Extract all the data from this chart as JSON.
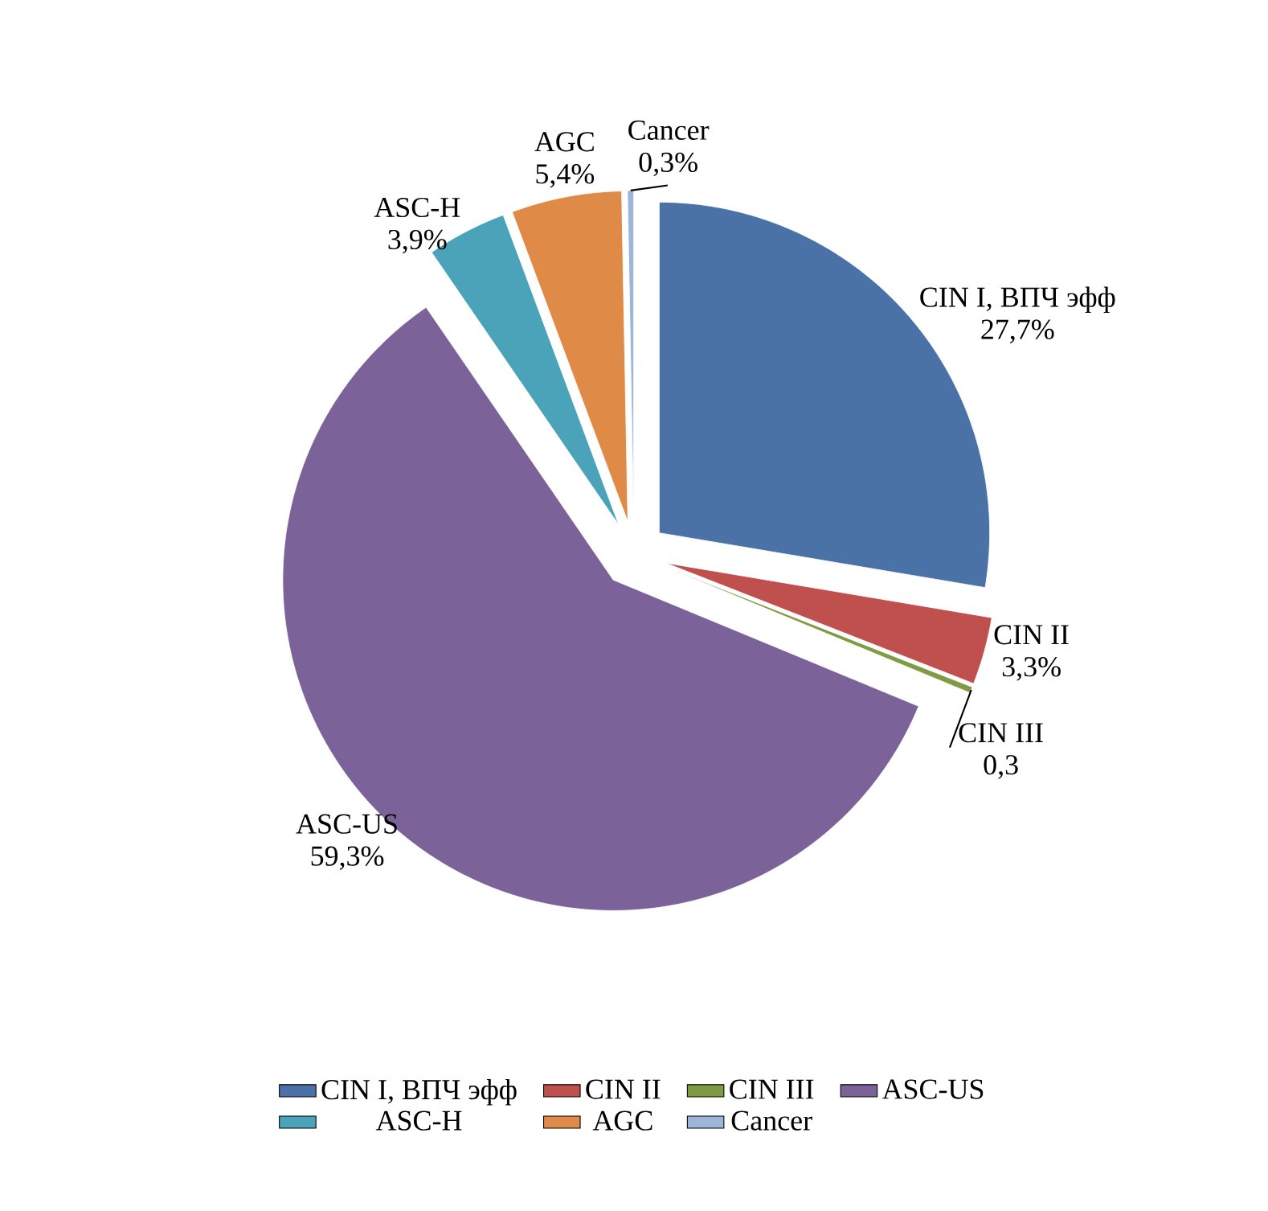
{
  "chart_data": {
    "type": "pie",
    "categories": [
      "CIN I, ВПЧ эфф",
      "CIN II",
      "CIN III",
      "ASC-US",
      "ASC-H",
      "AGC",
      "Cancer"
    ],
    "values": [
      27.7,
      3.3,
      0.3,
      59.3,
      3.9,
      5.4,
      0.3
    ],
    "colors": [
      "#4a72a6",
      "#c0504d",
      "#7f9c45",
      "#7b6298",
      "#4aa3b8",
      "#e08a48",
      "#9db5d8"
    ],
    "value_labels": [
      "27,7%",
      "3,3%",
      "0,3",
      "59,3%",
      "3,9%",
      "5,4%",
      "0,3%"
    ],
    "legend": "bottom"
  }
}
